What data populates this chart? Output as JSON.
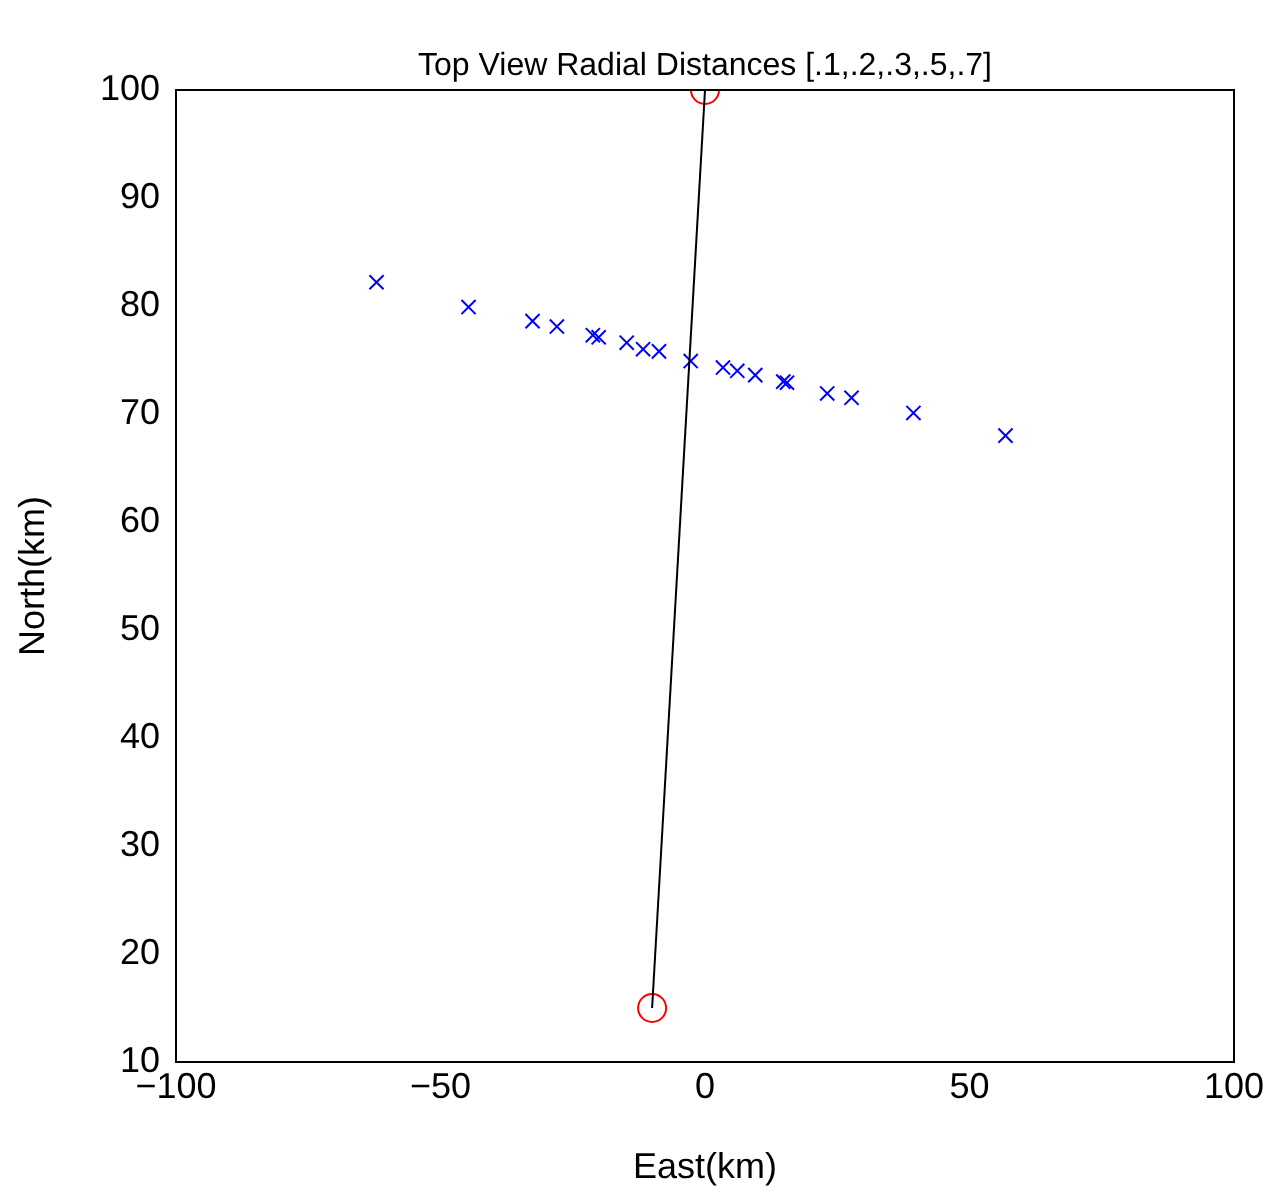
{
  "chart_data": {
    "type": "scatter",
    "title": "Top View Radial Distances [.1,.2,.3,.5,.7]",
    "xlabel": "East(km)",
    "ylabel": "North(km)",
    "xlim": [
      -100,
      100
    ],
    "xticks": [
      {
        "value": -100,
        "label": "−100"
      },
      {
        "value": -50,
        "label": "−50"
      },
      0,
      50,
      100
    ],
    "ylim": [
      10,
      100
    ],
    "yticks": [
      10,
      20,
      30,
      40,
      50,
      60,
      70,
      80,
      90,
      100
    ],
    "grid": false,
    "legend": false,
    "series": [
      {
        "type": "line",
        "color": "#000000",
        "marker": "none",
        "x": [
          0,
          -10
        ],
        "values": [
          100,
          15
        ]
      },
      {
        "type": "scatter",
        "color": "#ff0000",
        "marker": "circle",
        "x": [
          0,
          -10
        ],
        "values": [
          100,
          15
        ]
      },
      {
        "type": "scatter",
        "color": "#0000ff",
        "marker": "cross",
        "x": [
          -62.1,
          -44.7,
          -32.6,
          -28.0,
          -21.2,
          -20.1,
          -14.8,
          -11.7,
          -8.7,
          -2.7,
          3.4,
          6.1,
          9.5,
          14.8,
          15.5,
          23.1,
          27.7,
          39.4,
          56.8
        ],
        "values": [
          82.2,
          79.9,
          78.6,
          78.1,
          77.3,
          77.1,
          76.6,
          76.0,
          75.8,
          74.9,
          74.3,
          74.0,
          73.6,
          73.0,
          72.9,
          71.9,
          71.5,
          70.1,
          68.0
        ]
      }
    ]
  }
}
